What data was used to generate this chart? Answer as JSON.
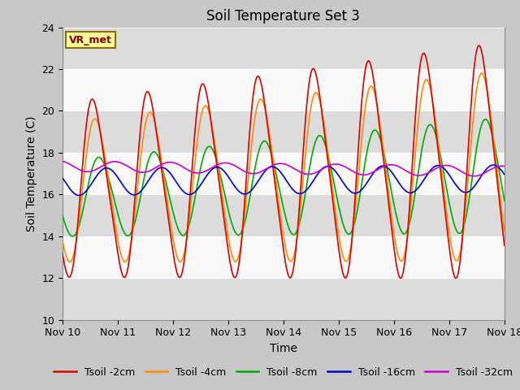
{
  "title": "Soil Temperature Set 3",
  "xlabel": "Time",
  "ylabel": "Soil Temperature (C)",
  "xlim": [
    0,
    8
  ],
  "ylim": [
    10,
    24
  ],
  "yticks": [
    10,
    12,
    14,
    16,
    18,
    20,
    22,
    24
  ],
  "xtick_labels": [
    "Nov 10",
    "Nov 11",
    "Nov 12",
    "Nov 13",
    "Nov 14",
    "Nov 15",
    "Nov 16",
    "Nov 17",
    "Nov 18"
  ],
  "xtick_pos": [
    0,
    1,
    2,
    3,
    4,
    5,
    6,
    7,
    8
  ],
  "fig_bg": "#c8c8c8",
  "plot_bg": "#f0f0f0",
  "band_light": "#f8f8f8",
  "band_dark": "#dcdcdc",
  "annotation_text": "VR_met",
  "annotation_color": "#8b0000",
  "annotation_bg": "#ffff99",
  "annotation_border": "#8b6914",
  "legend_colors": [
    "#dd0000",
    "#ff8c00",
    "#00aa00",
    "#0000cc",
    "#cc00cc"
  ],
  "legend_labels": [
    "Tsoil -2cm",
    "Tsoil -4cm",
    "Tsoil -8cm",
    "Tsoil -16cm",
    "Tsoil -32cm"
  ],
  "title_fontsize": 12,
  "axis_label_fontsize": 10,
  "tick_fontsize": 9,
  "legend_fontsize": 9
}
